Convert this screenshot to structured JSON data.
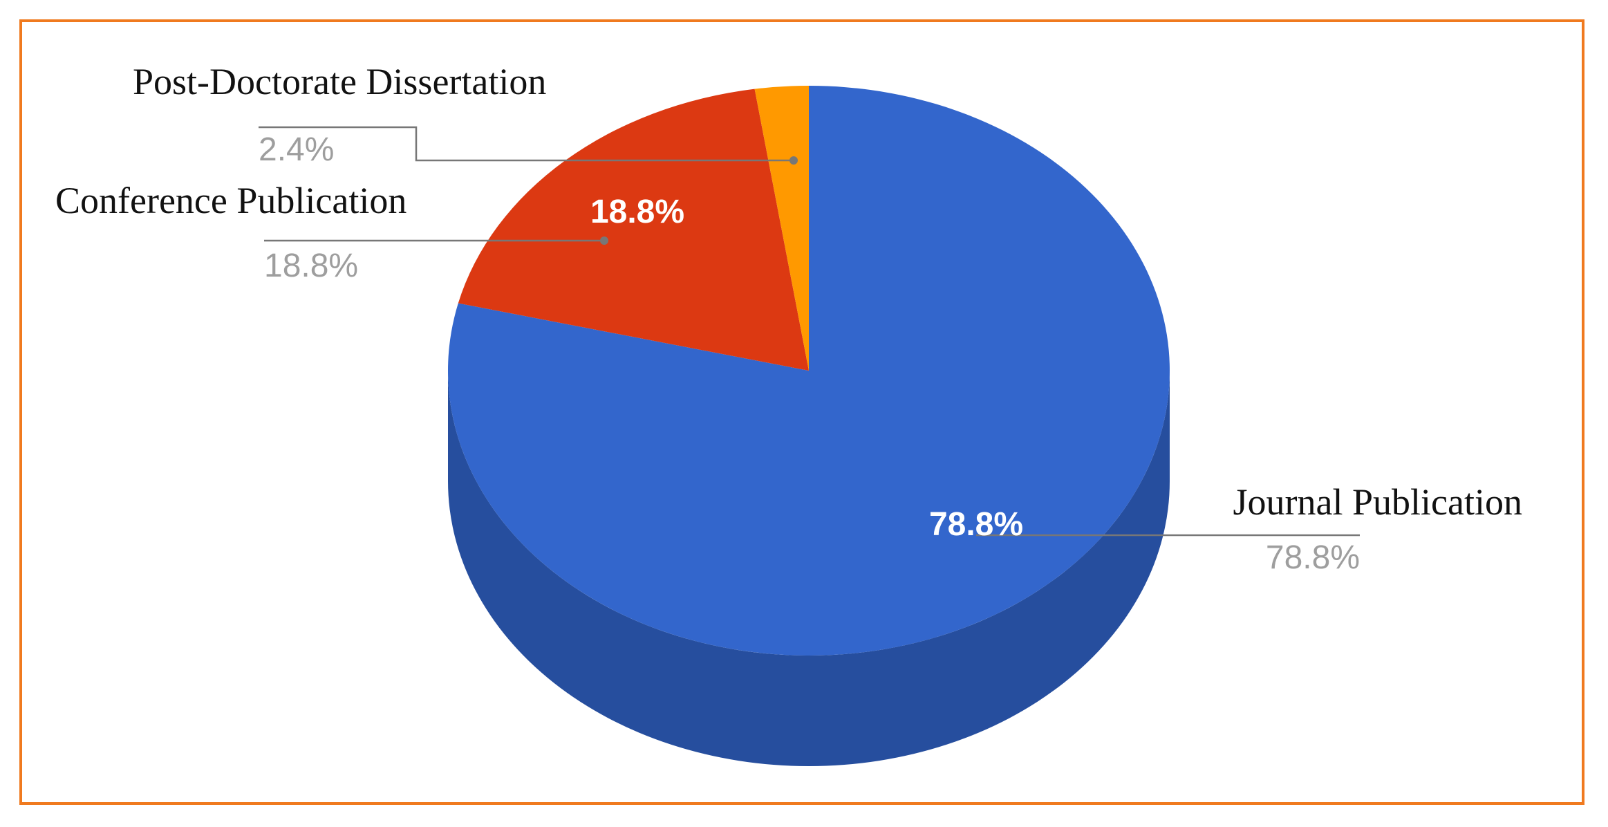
{
  "chart_data": {
    "type": "pie",
    "title": "",
    "style": "3d",
    "start_angle_deg": 0,
    "direction": "clockwise",
    "slices": [
      {
        "label": "Journal Publication",
        "value": 78.8,
        "percent_label": "78.8%",
        "color": "#3366cc",
        "side_color": "#264e9e",
        "show_inside_label": true
      },
      {
        "label": "Conference Publication",
        "value": 18.8,
        "percent_label": "18.8%",
        "color": "#dc3912",
        "side_color": "#a82a0c",
        "show_inside_label": true
      },
      {
        "label": "Post-Doctorate Dissertation",
        "value": 2.4,
        "percent_label": "2.4%",
        "color": "#ff9900",
        "side_color": "#c77700",
        "show_inside_label": false
      }
    ],
    "legend": "none",
    "frame_color": "#f07a1f"
  }
}
